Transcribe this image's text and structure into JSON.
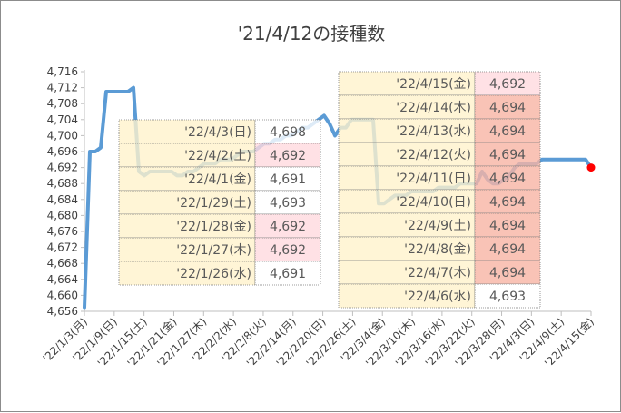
{
  "chart_data": {
    "type": "line",
    "title": "'21/4/12の接種数",
    "xlabel": "",
    "ylabel": "",
    "ylim": [
      4656,
      4716
    ],
    "yticks": [
      4656,
      4660,
      4664,
      4668,
      4672,
      4676,
      4680,
      4684,
      4688,
      4692,
      4696,
      4700,
      4704,
      4708,
      4712,
      4716
    ],
    "ytick_labels": [
      "4,656",
      "4,660",
      "4,664",
      "4,668",
      "4,672",
      "4,676",
      "4,680",
      "4,684",
      "4,688",
      "4,692",
      "4,696",
      "4,700",
      "4,704",
      "4,708",
      "4,712",
      "4,716"
    ],
    "xticks": [
      "'22/1/3(月)",
      "'22/1/9(日)",
      "'22/1/15(土)",
      "'22/1/21(金)",
      "'22/1/27(木)",
      "'22/2/2(水)",
      "'22/2/8(火)",
      "'22/2/14(月)",
      "'22/2/20(日)",
      "'22/2/26(土)",
      "'22/3/4(金)",
      "'22/3/10(木)",
      "'22/3/16(水)",
      "'22/3/22(火)",
      "'22/3/28(月)",
      "'22/4/3(日)",
      "'22/4/9(土)",
      "'22/4/15(金)"
    ],
    "grid": false,
    "line_color": "#5b9bd5",
    "last_point_color": "#ff0000",
    "series": [
      {
        "values": [
          [
            0,
            4657
          ],
          [
            1,
            4696
          ],
          [
            2,
            4696
          ],
          [
            3,
            4697
          ],
          [
            4,
            4711
          ],
          [
            5,
            4711
          ],
          [
            6,
            4711
          ],
          [
            7,
            4711
          ],
          [
            8,
            4711
          ],
          [
            9,
            4712
          ],
          [
            10,
            4691
          ],
          [
            11,
            4690
          ],
          [
            12,
            4691
          ],
          [
            13,
            4691
          ],
          [
            14,
            4691
          ],
          [
            15,
            4691
          ],
          [
            16,
            4691
          ],
          [
            17,
            4690
          ],
          [
            18,
            4690
          ],
          [
            19,
            4691
          ],
          [
            20,
            4691
          ],
          [
            21,
            4692
          ],
          [
            22,
            4693
          ],
          [
            23,
            4693
          ],
          [
            24,
            4693
          ],
          [
            25,
            4694
          ],
          [
            26,
            4694
          ],
          [
            27,
            4694
          ],
          [
            28,
            4695
          ],
          [
            29,
            4696
          ],
          [
            30,
            4696
          ],
          [
            31,
            4696
          ],
          [
            32,
            4697
          ],
          [
            33,
            4698
          ],
          [
            34,
            4698
          ],
          [
            35,
            4699
          ],
          [
            36,
            4699
          ],
          [
            37,
            4700
          ],
          [
            38,
            4700
          ],
          [
            39,
            4701
          ],
          [
            40,
            4702
          ],
          [
            41,
            4702
          ],
          [
            42,
            4703
          ],
          [
            43,
            4704
          ],
          [
            44,
            4705
          ],
          [
            45,
            4703
          ],
          [
            46,
            4700
          ],
          [
            47,
            4702
          ],
          [
            48,
            4702
          ],
          [
            49,
            4704
          ],
          [
            50,
            4704
          ],
          [
            51,
            4704
          ],
          [
            52,
            4704
          ],
          [
            53,
            4704
          ],
          [
            54,
            4683
          ],
          [
            55,
            4683
          ],
          [
            56,
            4684
          ],
          [
            57,
            4685
          ],
          [
            58,
            4685
          ],
          [
            59,
            4685
          ],
          [
            60,
            4686
          ],
          [
            61,
            4686
          ],
          [
            62,
            4686
          ],
          [
            63,
            4686
          ],
          [
            64,
            4686
          ],
          [
            65,
            4687
          ],
          [
            66,
            4687
          ],
          [
            67,
            4687
          ],
          [
            68,
            4687
          ],
          [
            69,
            4688
          ],
          [
            70,
            4688
          ],
          [
            71,
            4688
          ],
          [
            72,
            4688
          ],
          [
            73,
            4691
          ],
          [
            74,
            4689
          ],
          [
            75,
            4688
          ],
          [
            76,
            4688
          ],
          [
            77,
            4689
          ],
          [
            78,
            4690
          ],
          [
            79,
            4692
          ],
          [
            80,
            4693
          ],
          [
            81,
            4693
          ],
          [
            82,
            4693
          ],
          [
            83,
            4693
          ],
          [
            84,
            4694
          ],
          [
            85,
            4694
          ],
          [
            86,
            4694
          ],
          [
            87,
            4694
          ],
          [
            88,
            4694
          ],
          [
            89,
            4694
          ],
          [
            90,
            4694
          ],
          [
            91,
            4694
          ],
          [
            92,
            4694
          ],
          [
            93,
            4692
          ]
        ]
      }
    ],
    "tables": [
      {
        "rows": [
          {
            "date": "'22/4/3(日)",
            "value": "4,698",
            "highlight": "none"
          },
          {
            "date": "'22/4/2(土)",
            "value": "4,692",
            "highlight": "pink"
          },
          {
            "date": "'22/4/1(金)",
            "value": "4,691",
            "highlight": "none"
          },
          {
            "date": "'22/1/29(土)",
            "value": "4,693",
            "highlight": "none"
          },
          {
            "date": "'22/1/28(金)",
            "value": "4,692",
            "highlight": "pink"
          },
          {
            "date": "'22/1/27(木)",
            "value": "4,692",
            "highlight": "pink"
          },
          {
            "date": "'22/1/26(水)",
            "value": "4,691",
            "highlight": "none"
          }
        ]
      },
      {
        "rows": [
          {
            "date": "'22/4/15(金)",
            "value": "4,692",
            "highlight": "pink"
          },
          {
            "date": "'22/4/14(木)",
            "value": "4,694",
            "highlight": "salmon"
          },
          {
            "date": "'22/4/13(水)",
            "value": "4,694",
            "highlight": "salmon"
          },
          {
            "date": "'22/4/12(火)",
            "value": "4,694",
            "highlight": "salmon"
          },
          {
            "date": "'22/4/11(日)",
            "value": "4,694",
            "highlight": "salmon"
          },
          {
            "date": "'22/4/10(日)",
            "value": "4,694",
            "highlight": "salmon"
          },
          {
            "date": "'22/4/9(土)",
            "value": "4,694",
            "highlight": "salmon"
          },
          {
            "date": "'22/4/8(金)",
            "value": "4,694",
            "highlight": "salmon"
          },
          {
            "date": "'22/4/7(木)",
            "value": "4,694",
            "highlight": "salmon"
          },
          {
            "date": "'22/4/6(水)",
            "value": "4,693",
            "highlight": "none"
          }
        ]
      }
    ],
    "colors": {
      "date_bg": "#fff2cc",
      "value_bg": "#ffffff",
      "pink": "#ffd9df",
      "salmon": "#f8b4a4"
    }
  }
}
